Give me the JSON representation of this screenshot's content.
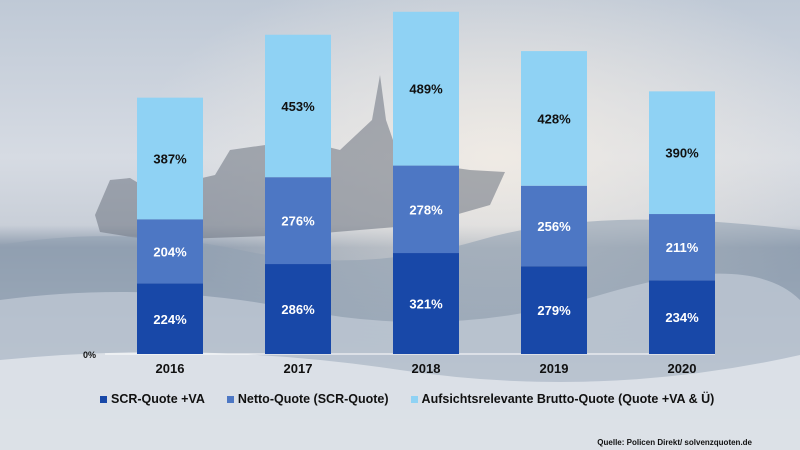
{
  "chart_data": {
    "type": "bar",
    "stacked": true,
    "categories": [
      "2016",
      "2017",
      "2018",
      "2019",
      "2020"
    ],
    "series": [
      {
        "name": "SCR-Quote +VA",
        "values": [
          224,
          286,
          321,
          279,
          234
        ],
        "color": "#1848a8",
        "label_color": "#ffffff"
      },
      {
        "name": "Netto-Quote (SCR-Quote)",
        "values": [
          204,
          276,
          278,
          256,
          211
        ],
        "color": "#4d77c4",
        "label_color": "#ffffff"
      },
      {
        "name": "Aufsichtsrelevante Brutto-Quote (Quote +VA & Ü)",
        "values": [
          387,
          453,
          489,
          428,
          390
        ],
        "color": "#8fd2f4",
        "label_color": "#111111"
      }
    ],
    "value_suffix": "%",
    "y_tick_label": "0%",
    "ylim": [
      0,
      1100
    ],
    "legend_position": "bottom",
    "source": "Quelle: Policen Direkt/ solvenzquoten.de"
  }
}
